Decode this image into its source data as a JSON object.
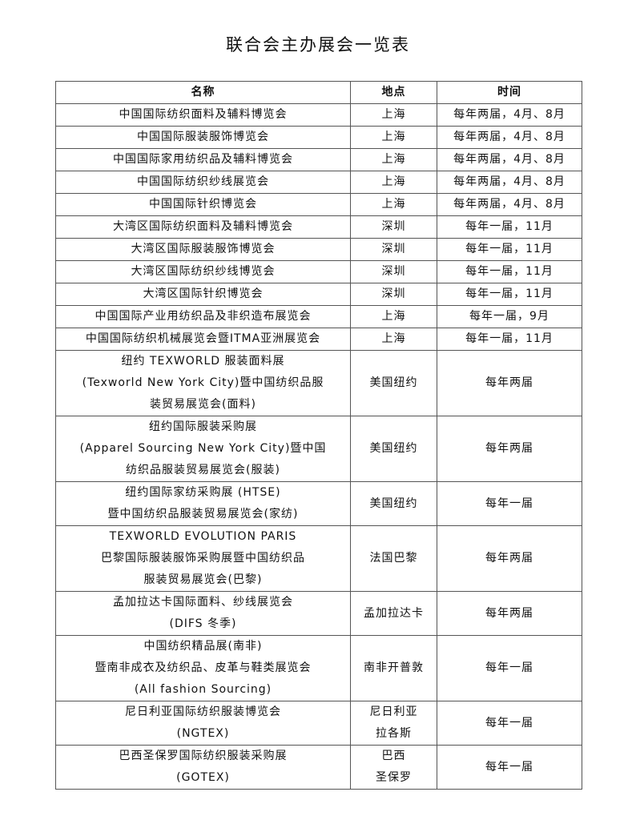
{
  "title": "联合会主办展会一览表",
  "headers": [
    "名称",
    "地点",
    "时间"
  ],
  "rows": [
    {
      "name": [
        "中国国际纺织面料及辅料博览会"
      ],
      "location": [
        "上海"
      ],
      "time": "每年两届，4月、8月",
      "h": 1
    },
    {
      "name": [
        "中国国际服装服饰博览会"
      ],
      "location": [
        "上海"
      ],
      "time": "每年两届，4月、8月",
      "h": 1
    },
    {
      "name": [
        "中国国际家用纺织品及辅料博览会"
      ],
      "location": [
        "上海"
      ],
      "time": "每年两届，4月、8月",
      "h": 1
    },
    {
      "name": [
        "中国国际纺织纱线展览会"
      ],
      "location": [
        "上海"
      ],
      "time": "每年两届，4月、8月",
      "h": 1
    },
    {
      "name": [
        "中国国际针织博览会"
      ],
      "location": [
        "上海"
      ],
      "time": "每年两届，4月、8月",
      "h": 1
    },
    {
      "name": [
        "大湾区国际纺织面料及辅料博览会"
      ],
      "location": [
        "深圳"
      ],
      "time": "每年一届，11月",
      "h": 1
    },
    {
      "name": [
        "大湾区国际服装服饰博览会"
      ],
      "location": [
        "深圳"
      ],
      "time": "每年一届，11月",
      "h": 1
    },
    {
      "name": [
        "大湾区国际纺织纱线博览会"
      ],
      "location": [
        "深圳"
      ],
      "time": "每年一届，11月",
      "h": 1
    },
    {
      "name": [
        "大湾区国际针织博览会"
      ],
      "location": [
        "深圳"
      ],
      "time": "每年一届，11月",
      "h": 1
    },
    {
      "name": [
        "中国国际产业用纺织品及非织造布展览会"
      ],
      "location": [
        "上海"
      ],
      "time": "每年一届，9月",
      "h": 1
    },
    {
      "name": [
        "中国国际纺织机械展览会暨ITMA亚洲展览会"
      ],
      "location": [
        "上海"
      ],
      "time": "每年一届，11月",
      "h": 1
    },
    {
      "name": [
        "纽约 TEXWORLD 服装面料展",
        "(Texworld New York City)暨中国纺织品服",
        "装贸易展览会(面料)"
      ],
      "location": [
        "美国纽约"
      ],
      "time": "每年两届",
      "h": 3
    },
    {
      "name": [
        "纽约国际服装采购展",
        "(Apparel Sourcing New York City)暨中国",
        "纺织品服装贸易展览会(服装)"
      ],
      "location": [
        "美国纽约"
      ],
      "time": "每年两届",
      "h": 3
    },
    {
      "name": [
        "纽约国际家纺采购展 (HTSE)",
        "暨中国纺织品服装贸易展览会(家纺)"
      ],
      "location": [
        "美国纽约"
      ],
      "time": "每年一届",
      "h": 2
    },
    {
      "name": [
        "TEXWORLD EVOLUTION PARIS",
        "巴黎国际服装服饰采购展暨中国纺织品",
        "服装贸易展览会(巴黎)"
      ],
      "location": [
        "法国巴黎"
      ],
      "time": "每年两届",
      "h": 3
    },
    {
      "name": [
        "孟加拉达卡国际面料、纱线展览会",
        "(DIFS 冬季)"
      ],
      "location": [
        "孟加拉达卡"
      ],
      "time": "每年两届",
      "h": 2
    },
    {
      "name": [
        "中国纺织精品展(南非)",
        "暨南非成衣及纺织品、皮革与鞋类展览会",
        "(All fashion Sourcing)"
      ],
      "location": [
        "南非开普敦"
      ],
      "time": "每年一届",
      "h": 3
    },
    {
      "name": [
        "尼日利亚国际纺织服装博览会",
        "(NGTEX)"
      ],
      "location": [
        "尼日利亚",
        "拉各斯"
      ],
      "time": "每年一届",
      "h": 2
    },
    {
      "name": [
        "巴西圣保罗国际纺织服装采购展",
        "(GOTEX)"
      ],
      "location": [
        "巴西",
        "圣保罗"
      ],
      "time": "每年一届",
      "h": 2
    }
  ]
}
